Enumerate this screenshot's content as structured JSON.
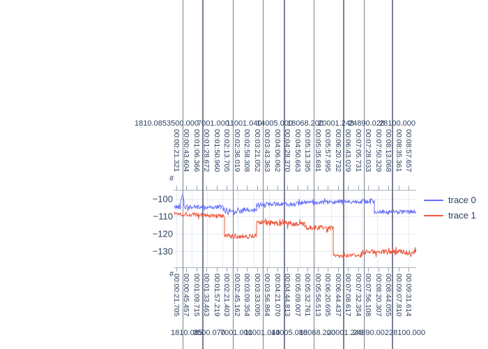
{
  "page": {
    "background": "#ffffff",
    "text_color": "#2a3f5f",
    "gridline_color": "#e6ebf3",
    "tall_gridline_color": "#79818f"
  },
  "chart_data": {
    "type": "line",
    "title": "",
    "legend_position": "right",
    "grid": true,
    "yaxis": {
      "tick_values": [
        -100,
        -110,
        -120,
        -130
      ],
      "tick_display": [
        "−100",
        "−110",
        "−120",
        "−130"
      ],
      "range": [
        -139.5,
        -94.6
      ]
    },
    "x_axes": {
      "top_numeric": {
        "title": "#",
        "tick_labels": [
          "1810.085",
          "3500.000",
          "7001.000",
          "11001.040",
          "14005.000",
          "18068.200",
          "20001.248",
          "24890.028",
          "28100.000"
        ]
      },
      "top_time": {
        "tick_labels": [
          "00:00:21.321",
          "00:00:43.604",
          "00:01:06.366",
          "00:01:28.672",
          "00:01:50.960",
          "00:02:13.705",
          "00:02:36.019",
          "00:02:58.308",
          "00:03:21.052",
          "00:03:43.363",
          "00:04:06.062",
          "00:04:28.370",
          "00:04:50.663",
          "00:05:13.395",
          "00:05:35.681",
          "00:05:57.995",
          "00:06:20.732",
          "00:06:43.029",
          "00:07:05.731",
          "00:07:28.033",
          "00:07:50.329",
          "00:08:13.068",
          "00:08:35.361",
          "00:08:57.657"
        ]
      },
      "bottom_time": {
        "title": "#",
        "tick_labels": [
          "00:00:21.705",
          "00:00:45.457",
          "00:01:09.715",
          "00:01:33.463",
          "00:01:57.219",
          "00:02:21.403",
          "00:02:45.162",
          "00:03:09.354",
          "00:03:33.095",
          "00:03:56.864",
          "00:04:21.070",
          "00:04:44.813",
          "00:05:09.007",
          "00:05:32.761",
          "00:05:56.513",
          "00:06:20.695",
          "00:06:44.437",
          "00:07:08.617",
          "00:07:32.354",
          "00:07:56.108",
          "00:08:20.307",
          "00:08:44.055",
          "00:09:07.810",
          "00:09:31.614"
        ]
      },
      "bottom_numeric": {
        "tick_labels": [
          "1810.085",
          "3500.070",
          "7001.000",
          "11001.040",
          "14005.080",
          "18068.200",
          "20001.248",
          "24890.002",
          "28100.000"
        ]
      }
    },
    "series": [
      {
        "name": "trace 0",
        "color": "#636efa",
        "style": "noisy-step-line",
        "segments": [
          [
            0.0,
            0.026,
            -104.6,
            -104.6,
            1.2
          ],
          [
            0.026,
            0.035,
            -101.0,
            -97.0,
            0.5
          ],
          [
            0.035,
            0.04,
            -97.0,
            -101.0,
            0.5
          ],
          [
            0.04,
            0.202,
            -104.7,
            -104.7,
            1.3
          ],
          [
            0.202,
            0.34,
            -106.6,
            -106.6,
            1.7
          ],
          [
            0.34,
            0.522,
            -103.1,
            -102.9,
            1.3
          ],
          [
            0.522,
            0.634,
            -102.2,
            -102.2,
            1.2
          ],
          [
            0.634,
            0.827,
            -101.7,
            -101.3,
            1.2
          ],
          [
            0.827,
            1.0,
            -107.4,
            -107.4,
            1.2
          ]
        ]
      },
      {
        "name": "trace 1",
        "color": "#ef553b",
        "style": "noisy-step-line",
        "segments": [
          [
            0.0,
            0.2075,
            -108.3,
            -110.1,
            1.3
          ],
          [
            0.2075,
            0.34,
            -121.4,
            -121.2,
            1.5
          ],
          [
            0.34,
            0.539,
            -113.3,
            -114.6,
            1.5
          ],
          [
            0.539,
            0.657,
            -116.3,
            -116.6,
            1.3
          ],
          [
            0.657,
            0.7695,
            -132.7,
            -132.5,
            1.2
          ],
          [
            0.7695,
            1.0,
            -130.5,
            -130.2,
            1.5
          ]
        ]
      }
    ]
  }
}
